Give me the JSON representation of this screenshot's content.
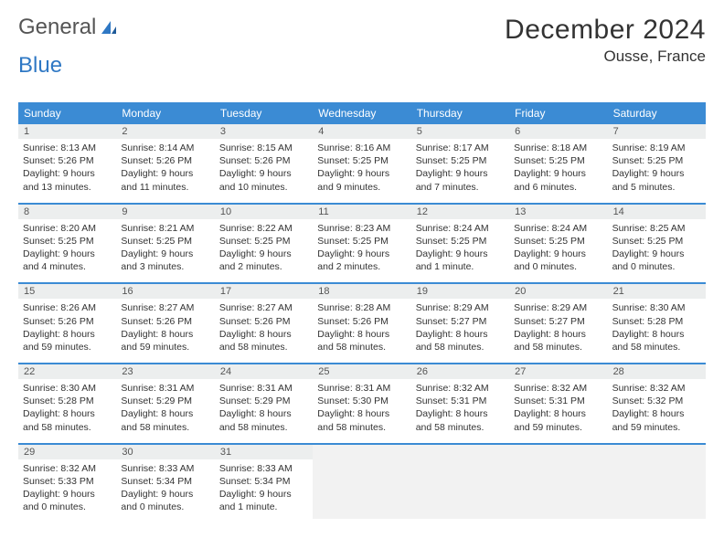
{
  "brand": {
    "word1": "General",
    "word2": "Blue"
  },
  "title": "December 2024",
  "location": "Ousse, France",
  "colors": {
    "header_bg": "#3b8bd4",
    "header_text": "#ffffff",
    "daynum_bg": "#eceeee",
    "empty_bg": "#f2f2f2",
    "separator": "#3b8bd4",
    "text": "#333333",
    "logo_gray": "#555555",
    "logo_blue": "#2f78c4"
  },
  "day_headers": [
    "Sunday",
    "Monday",
    "Tuesday",
    "Wednesday",
    "Thursday",
    "Friday",
    "Saturday"
  ],
  "weeks": [
    [
      {
        "n": "1",
        "sr": "Sunrise: 8:13 AM",
        "ss": "Sunset: 5:26 PM",
        "d1": "Daylight: 9 hours",
        "d2": "and 13 minutes."
      },
      {
        "n": "2",
        "sr": "Sunrise: 8:14 AM",
        "ss": "Sunset: 5:26 PM",
        "d1": "Daylight: 9 hours",
        "d2": "and 11 minutes."
      },
      {
        "n": "3",
        "sr": "Sunrise: 8:15 AM",
        "ss": "Sunset: 5:26 PM",
        "d1": "Daylight: 9 hours",
        "d2": "and 10 minutes."
      },
      {
        "n": "4",
        "sr": "Sunrise: 8:16 AM",
        "ss": "Sunset: 5:25 PM",
        "d1": "Daylight: 9 hours",
        "d2": "and 9 minutes."
      },
      {
        "n": "5",
        "sr": "Sunrise: 8:17 AM",
        "ss": "Sunset: 5:25 PM",
        "d1": "Daylight: 9 hours",
        "d2": "and 7 minutes."
      },
      {
        "n": "6",
        "sr": "Sunrise: 8:18 AM",
        "ss": "Sunset: 5:25 PM",
        "d1": "Daylight: 9 hours",
        "d2": "and 6 minutes."
      },
      {
        "n": "7",
        "sr": "Sunrise: 8:19 AM",
        "ss": "Sunset: 5:25 PM",
        "d1": "Daylight: 9 hours",
        "d2": "and 5 minutes."
      }
    ],
    [
      {
        "n": "8",
        "sr": "Sunrise: 8:20 AM",
        "ss": "Sunset: 5:25 PM",
        "d1": "Daylight: 9 hours",
        "d2": "and 4 minutes."
      },
      {
        "n": "9",
        "sr": "Sunrise: 8:21 AM",
        "ss": "Sunset: 5:25 PM",
        "d1": "Daylight: 9 hours",
        "d2": "and 3 minutes."
      },
      {
        "n": "10",
        "sr": "Sunrise: 8:22 AM",
        "ss": "Sunset: 5:25 PM",
        "d1": "Daylight: 9 hours",
        "d2": "and 2 minutes."
      },
      {
        "n": "11",
        "sr": "Sunrise: 8:23 AM",
        "ss": "Sunset: 5:25 PM",
        "d1": "Daylight: 9 hours",
        "d2": "and 2 minutes."
      },
      {
        "n": "12",
        "sr": "Sunrise: 8:24 AM",
        "ss": "Sunset: 5:25 PM",
        "d1": "Daylight: 9 hours",
        "d2": "and 1 minute."
      },
      {
        "n": "13",
        "sr": "Sunrise: 8:24 AM",
        "ss": "Sunset: 5:25 PM",
        "d1": "Daylight: 9 hours",
        "d2": "and 0 minutes."
      },
      {
        "n": "14",
        "sr": "Sunrise: 8:25 AM",
        "ss": "Sunset: 5:25 PM",
        "d1": "Daylight: 9 hours",
        "d2": "and 0 minutes."
      }
    ],
    [
      {
        "n": "15",
        "sr": "Sunrise: 8:26 AM",
        "ss": "Sunset: 5:26 PM",
        "d1": "Daylight: 8 hours",
        "d2": "and 59 minutes."
      },
      {
        "n": "16",
        "sr": "Sunrise: 8:27 AM",
        "ss": "Sunset: 5:26 PM",
        "d1": "Daylight: 8 hours",
        "d2": "and 59 minutes."
      },
      {
        "n": "17",
        "sr": "Sunrise: 8:27 AM",
        "ss": "Sunset: 5:26 PM",
        "d1": "Daylight: 8 hours",
        "d2": "and 58 minutes."
      },
      {
        "n": "18",
        "sr": "Sunrise: 8:28 AM",
        "ss": "Sunset: 5:26 PM",
        "d1": "Daylight: 8 hours",
        "d2": "and 58 minutes."
      },
      {
        "n": "19",
        "sr": "Sunrise: 8:29 AM",
        "ss": "Sunset: 5:27 PM",
        "d1": "Daylight: 8 hours",
        "d2": "and 58 minutes."
      },
      {
        "n": "20",
        "sr": "Sunrise: 8:29 AM",
        "ss": "Sunset: 5:27 PM",
        "d1": "Daylight: 8 hours",
        "d2": "and 58 minutes."
      },
      {
        "n": "21",
        "sr": "Sunrise: 8:30 AM",
        "ss": "Sunset: 5:28 PM",
        "d1": "Daylight: 8 hours",
        "d2": "and 58 minutes."
      }
    ],
    [
      {
        "n": "22",
        "sr": "Sunrise: 8:30 AM",
        "ss": "Sunset: 5:28 PM",
        "d1": "Daylight: 8 hours",
        "d2": "and 58 minutes."
      },
      {
        "n": "23",
        "sr": "Sunrise: 8:31 AM",
        "ss": "Sunset: 5:29 PM",
        "d1": "Daylight: 8 hours",
        "d2": "and 58 minutes."
      },
      {
        "n": "24",
        "sr": "Sunrise: 8:31 AM",
        "ss": "Sunset: 5:29 PM",
        "d1": "Daylight: 8 hours",
        "d2": "and 58 minutes."
      },
      {
        "n": "25",
        "sr": "Sunrise: 8:31 AM",
        "ss": "Sunset: 5:30 PM",
        "d1": "Daylight: 8 hours",
        "d2": "and 58 minutes."
      },
      {
        "n": "26",
        "sr": "Sunrise: 8:32 AM",
        "ss": "Sunset: 5:31 PM",
        "d1": "Daylight: 8 hours",
        "d2": "and 58 minutes."
      },
      {
        "n": "27",
        "sr": "Sunrise: 8:32 AM",
        "ss": "Sunset: 5:31 PM",
        "d1": "Daylight: 8 hours",
        "d2": "and 59 minutes."
      },
      {
        "n": "28",
        "sr": "Sunrise: 8:32 AM",
        "ss": "Sunset: 5:32 PM",
        "d1": "Daylight: 8 hours",
        "d2": "and 59 minutes."
      }
    ],
    [
      {
        "n": "29",
        "sr": "Sunrise: 8:32 AM",
        "ss": "Sunset: 5:33 PM",
        "d1": "Daylight: 9 hours",
        "d2": "and 0 minutes."
      },
      {
        "n": "30",
        "sr": "Sunrise: 8:33 AM",
        "ss": "Sunset: 5:34 PM",
        "d1": "Daylight: 9 hours",
        "d2": "and 0 minutes."
      },
      {
        "n": "31",
        "sr": "Sunrise: 8:33 AM",
        "ss": "Sunset: 5:34 PM",
        "d1": "Daylight: 9 hours",
        "d2": "and 1 minute."
      },
      {
        "empty": true
      },
      {
        "empty": true
      },
      {
        "empty": true
      },
      {
        "empty": true
      }
    ]
  ]
}
